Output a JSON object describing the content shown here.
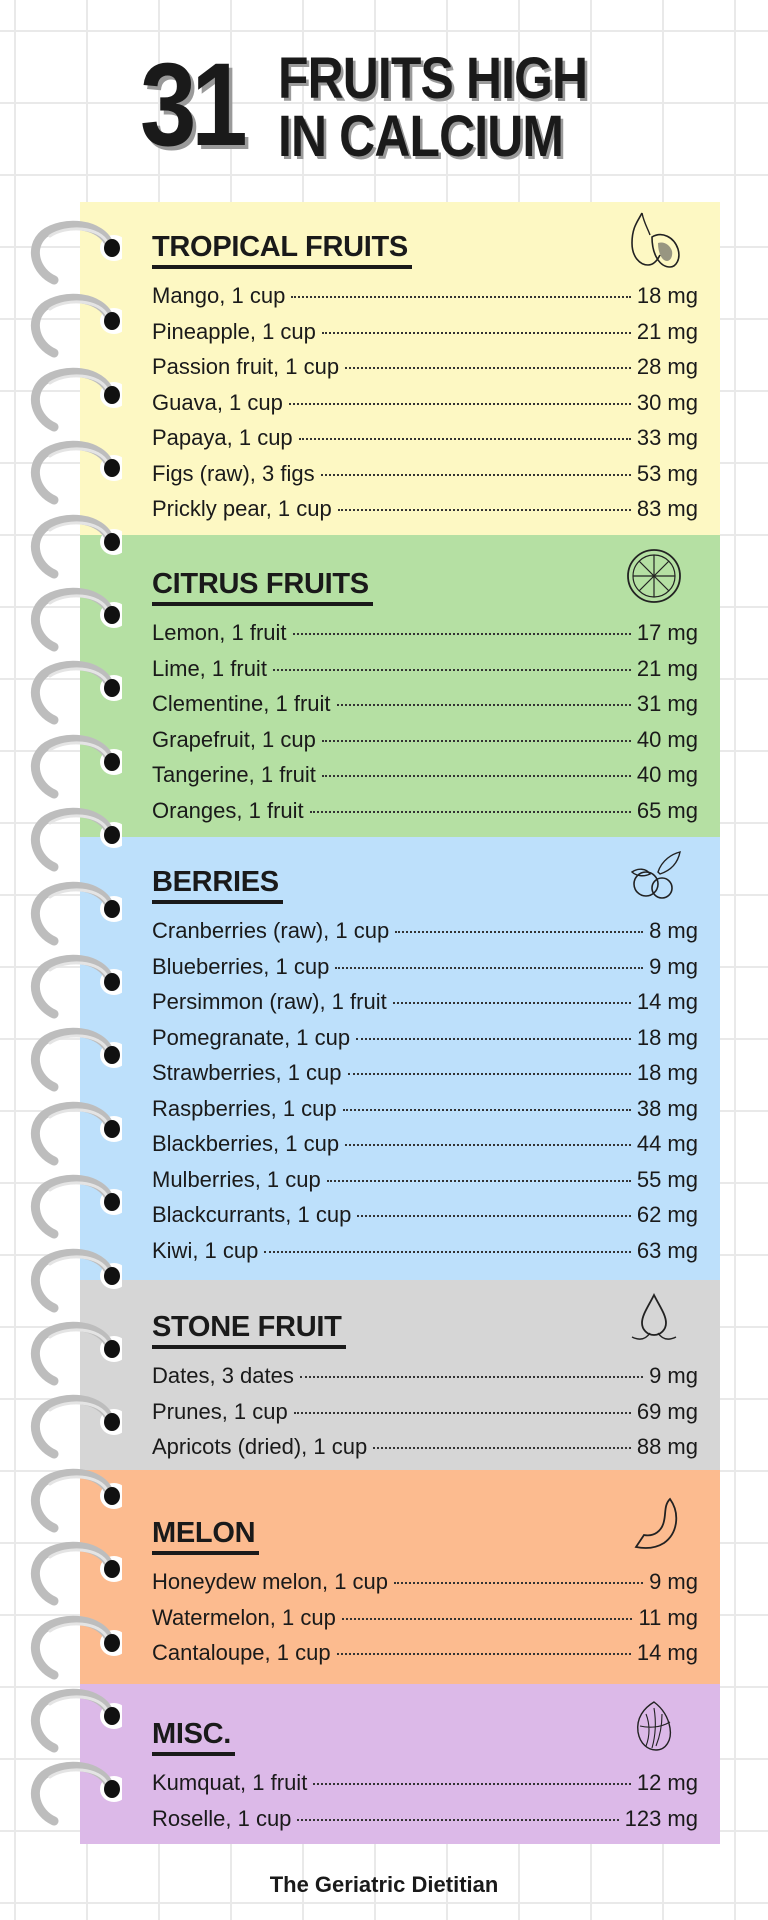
{
  "title": {
    "number": "31",
    "line1": "FRUITS HIGH",
    "line2": "IN CALCIUM"
  },
  "sections": [
    {
      "title": "TROPICAL FRUITS",
      "icon": "papaya-icon",
      "color": "#fdf8c3",
      "items": [
        {
          "name": "Mango, 1 cup",
          "value": "18 mg"
        },
        {
          "name": "Pineapple, 1 cup",
          "value": "21 mg"
        },
        {
          "name": "Passion fruit, 1 cup",
          "value": "28 mg"
        },
        {
          "name": "Guava, 1 cup",
          "value": "30 mg"
        },
        {
          "name": "Papaya, 1 cup",
          "value": "33 mg"
        },
        {
          "name": "Figs (raw), 3 figs",
          "value": "53 mg"
        },
        {
          "name": "Prickly pear, 1 cup",
          "value": "83 mg"
        }
      ]
    },
    {
      "title": "CITRUS FRUITS",
      "icon": "citrus-slice-icon",
      "color": "#b5e0a3",
      "items": [
        {
          "name": "Lemon, 1 fruit",
          "value": "17 mg"
        },
        {
          "name": "Lime, 1 fruit",
          "value": "21 mg"
        },
        {
          "name": "Clementine, 1 fruit",
          "value": "31 mg"
        },
        {
          "name": "Grapefruit, 1 cup",
          "value": "40 mg"
        },
        {
          "name": "Tangerine, 1 fruit",
          "value": "40 mg"
        },
        {
          "name": "Oranges, 1 fruit",
          "value": "65 mg"
        }
      ]
    },
    {
      "title": "BERRIES",
      "icon": "berries-icon",
      "color": "#bde0fb",
      "items": [
        {
          "name": "Cranberries (raw), 1 cup",
          "value": "8 mg"
        },
        {
          "name": "Blueberries, 1 cup",
          "value": "9 mg"
        },
        {
          "name": "Persimmon (raw), 1 fruit",
          "value": "14 mg"
        },
        {
          "name": "Pomegranate, 1 cup",
          "value": "18 mg"
        },
        {
          "name": "Strawberries, 1 cup",
          "value": "18 mg"
        },
        {
          "name": "Raspberries, 1 cup",
          "value": "38 mg"
        },
        {
          "name": "Blackberries, 1 cup",
          "value": "44 mg"
        },
        {
          "name": "Mulberries, 1 cup",
          "value": "55 mg"
        },
        {
          "name": "Blackcurrants, 1 cup",
          "value": "62 mg"
        },
        {
          "name": "Kiwi, 1 cup",
          "value": "63 mg"
        }
      ]
    },
    {
      "title": "STONE FRUIT",
      "icon": "drop-icon",
      "color": "#d6d6d6",
      "items": [
        {
          "name": "Dates, 3 dates",
          "value": "9 mg"
        },
        {
          "name": "Prunes, 1 cup",
          "value": "69 mg"
        },
        {
          "name": "Apricots (dried), 1 cup",
          "value": "88 mg"
        }
      ]
    },
    {
      "title": "MELON",
      "icon": "melon-slice-icon",
      "color": "#fcbb8f",
      "items": [
        {
          "name": "Honeydew melon, 1 cup",
          "value": "9 mg"
        },
        {
          "name": "Watermelon, 1 cup",
          "value": "11 mg"
        },
        {
          "name": "Cantaloupe, 1 cup",
          "value": "14 mg"
        }
      ]
    },
    {
      "title": "MISC.",
      "icon": "roselle-icon",
      "color": "#dcb9e8",
      "items": [
        {
          "name": "Kumquat, 1 fruit",
          "value": "12 mg"
        },
        {
          "name": "Roselle, 1 cup",
          "value": "123 mg"
        }
      ]
    }
  ],
  "footer": "The Geriatric Dietitian"
}
